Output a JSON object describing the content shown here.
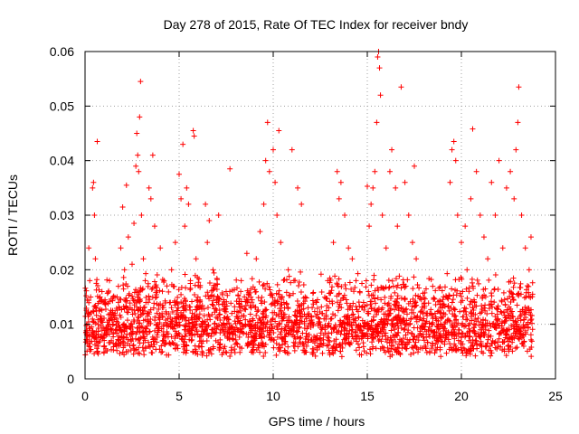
{
  "chart_data": {
    "type": "scatter",
    "title": "Day 278 of 2015, Rate Of TEC Index for receiver bndy",
    "xlabel": "GPS time / hours",
    "ylabel": "ROTI / TECUs",
    "xlim": [
      0,
      25
    ],
    "ylim": [
      0,
      0.06
    ],
    "x_ticks": [
      0,
      5,
      10,
      15,
      20,
      25
    ],
    "y_ticks": [
      0,
      0.01,
      0.02,
      0.03,
      0.04,
      0.05,
      0.06
    ],
    "x_tick_labels": [
      "0",
      "5",
      "10",
      "15",
      "20",
      "25"
    ],
    "y_tick_labels": [
      "0",
      "0.01",
      "0.02",
      "0.03",
      "0.04",
      "0.05",
      "0.06"
    ],
    "grid": true,
    "marker": "+",
    "color": "#ff0000",
    "series": [
      {
        "points": [
          [
            0.05,
            0.0085
          ],
          [
            0.15,
            0.012
          ],
          [
            0.2,
            0.024
          ],
          [
            0.25,
            0.018
          ],
          [
            0.3,
            0.015
          ],
          [
            0.35,
            0.0095
          ],
          [
            0.4,
            0.035
          ],
          [
            0.45,
            0.036
          ],
          [
            0.5,
            0.03
          ],
          [
            0.55,
            0.022
          ],
          [
            0.6,
            0.013
          ],
          [
            0.6,
            0.008
          ],
          [
            0.65,
            0.0435
          ],
          [
            0.7,
            0.006
          ],
          [
            0.8,
            0.011
          ],
          [
            0.9,
            0.016
          ],
          [
            1.0,
            0.0075
          ],
          [
            1.1,
            0.0055
          ],
          [
            1.2,
            0.009
          ],
          [
            1.3,
            0.018
          ],
          [
            1.4,
            0.007
          ],
          [
            1.5,
            0.0065
          ],
          [
            1.6,
            0.012
          ],
          [
            1.7,
            0.015
          ],
          [
            1.8,
            0.0095
          ],
          [
            1.9,
            0.024
          ],
          [
            2.0,
            0.0315
          ],
          [
            2.1,
            0.02
          ],
          [
            2.2,
            0.0355
          ],
          [
            2.3,
            0.026
          ],
          [
            2.4,
            0.013
          ],
          [
            2.5,
            0.021
          ],
          [
            2.6,
            0.0285
          ],
          [
            2.7,
            0.039
          ],
          [
            2.75,
            0.045
          ],
          [
            2.8,
            0.041
          ],
          [
            2.85,
            0.038
          ],
          [
            2.9,
            0.048
          ],
          [
            2.95,
            0.0545
          ],
          [
            3.0,
            0.03
          ],
          [
            3.1,
            0.022
          ],
          [
            3.2,
            0.018
          ],
          [
            3.3,
            0.012
          ],
          [
            3.4,
            0.035
          ],
          [
            3.5,
            0.033
          ],
          [
            3.6,
            0.041
          ],
          [
            3.7,
            0.028
          ],
          [
            3.8,
            0.015
          ],
          [
            3.9,
            0.0095
          ],
          [
            4.0,
            0.024
          ],
          [
            4.2,
            0.018
          ],
          [
            4.4,
            0.011
          ],
          [
            4.6,
            0.02
          ],
          [
            4.8,
            0.025
          ],
          [
            5.0,
            0.0375
          ],
          [
            5.1,
            0.033
          ],
          [
            5.2,
            0.043
          ],
          [
            5.3,
            0.028
          ],
          [
            5.4,
            0.035
          ],
          [
            5.5,
            0.032
          ],
          [
            5.6,
            0.018
          ],
          [
            5.7,
            0.012
          ],
          [
            5.75,
            0.0455
          ],
          [
            5.8,
            0.0445
          ],
          [
            5.9,
            0.022
          ],
          [
            6.0,
            0.015
          ],
          [
            6.2,
            0.01
          ],
          [
            6.4,
            0.032
          ],
          [
            6.5,
            0.025
          ],
          [
            6.6,
            0.029
          ],
          [
            6.8,
            0.02
          ],
          [
            7.0,
            0.014
          ],
          [
            7.1,
            0.03
          ],
          [
            7.2,
            0.009
          ],
          [
            7.5,
            0.016
          ],
          [
            7.7,
            0.0385
          ],
          [
            7.8,
            0.012
          ],
          [
            8.0,
            0.008
          ],
          [
            8.3,
            0.018
          ],
          [
            8.6,
            0.023
          ],
          [
            8.9,
            0.011
          ],
          [
            9.1,
            0.022
          ],
          [
            9.3,
            0.027
          ],
          [
            9.5,
            0.032
          ],
          [
            9.6,
            0.04
          ],
          [
            9.7,
            0.047
          ],
          [
            9.8,
            0.038
          ],
          [
            10.0,
            0.042
          ],
          [
            10.1,
            0.036
          ],
          [
            10.2,
            0.03
          ],
          [
            10.3,
            0.0455
          ],
          [
            10.4,
            0.025
          ],
          [
            10.6,
            0.013
          ],
          [
            10.8,
            0.02
          ],
          [
            11.0,
            0.042
          ],
          [
            11.1,
            0.018
          ],
          [
            11.3,
            0.035
          ],
          [
            11.5,
            0.032
          ],
          [
            11.7,
            0.015
          ],
          [
            12.0,
            0.01
          ],
          [
            12.3,
            0.014
          ],
          [
            12.6,
            0.012
          ],
          [
            12.9,
            0.018
          ],
          [
            13.2,
            0.025
          ],
          [
            13.4,
            0.038
          ],
          [
            13.5,
            0.033
          ],
          [
            13.6,
            0.036
          ],
          [
            13.8,
            0.03
          ],
          [
            14.0,
            0.024
          ],
          [
            14.2,
            0.022
          ],
          [
            14.4,
            0.018
          ],
          [
            14.6,
            0.016
          ],
          [
            14.8,
            0.014
          ],
          [
            15.0,
            0.0353
          ],
          [
            15.1,
            0.028
          ],
          [
            15.2,
            0.032
          ],
          [
            15.3,
            0.035
          ],
          [
            15.4,
            0.038
          ],
          [
            15.5,
            0.047
          ],
          [
            15.55,
            0.059
          ],
          [
            15.6,
            0.06
          ],
          [
            15.65,
            0.057
          ],
          [
            15.7,
            0.052
          ],
          [
            15.8,
            0.03
          ],
          [
            16.0,
            0.024
          ],
          [
            16.2,
            0.038
          ],
          [
            16.3,
            0.042
          ],
          [
            16.5,
            0.035
          ],
          [
            16.6,
            0.028
          ],
          [
            16.8,
            0.0535
          ],
          [
            17.0,
            0.036
          ],
          [
            17.2,
            0.03
          ],
          [
            17.4,
            0.025
          ],
          [
            17.5,
            0.039
          ],
          [
            17.6,
            0.022
          ],
          [
            17.8,
            0.015
          ],
          [
            18.0,
            0.011
          ],
          [
            18.3,
            0.0095
          ],
          [
            18.6,
            0.012
          ],
          [
            18.9,
            0.01
          ],
          [
            19.2,
            0.015
          ],
          [
            19.4,
            0.036
          ],
          [
            19.5,
            0.042
          ],
          [
            19.6,
            0.0435
          ],
          [
            19.7,
            0.04
          ],
          [
            19.8,
            0.03
          ],
          [
            20.0,
            0.025
          ],
          [
            20.2,
            0.028
          ],
          [
            20.3,
            0.02
          ],
          [
            20.5,
            0.033
          ],
          [
            20.6,
            0.0458
          ],
          [
            20.8,
            0.038
          ],
          [
            21.0,
            0.03
          ],
          [
            21.2,
            0.026
          ],
          [
            21.4,
            0.022
          ],
          [
            21.6,
            0.036
          ],
          [
            21.8,
            0.03
          ],
          [
            22.0,
            0.04
          ],
          [
            22.2,
            0.024
          ],
          [
            22.4,
            0.035
          ],
          [
            22.6,
            0.038
          ],
          [
            22.8,
            0.033
          ],
          [
            22.9,
            0.042
          ],
          [
            23.0,
            0.047
          ],
          [
            23.05,
            0.0535
          ],
          [
            23.2,
            0.03
          ],
          [
            23.4,
            0.024
          ],
          [
            23.6,
            0.02
          ],
          [
            23.7,
            0.026
          ]
        ]
      }
    ],
    "background_band": {
      "description_omitted": true,
      "x_range": [
        0,
        23.8
      ],
      "y_range": [
        0.004,
        0.014
      ]
    }
  }
}
